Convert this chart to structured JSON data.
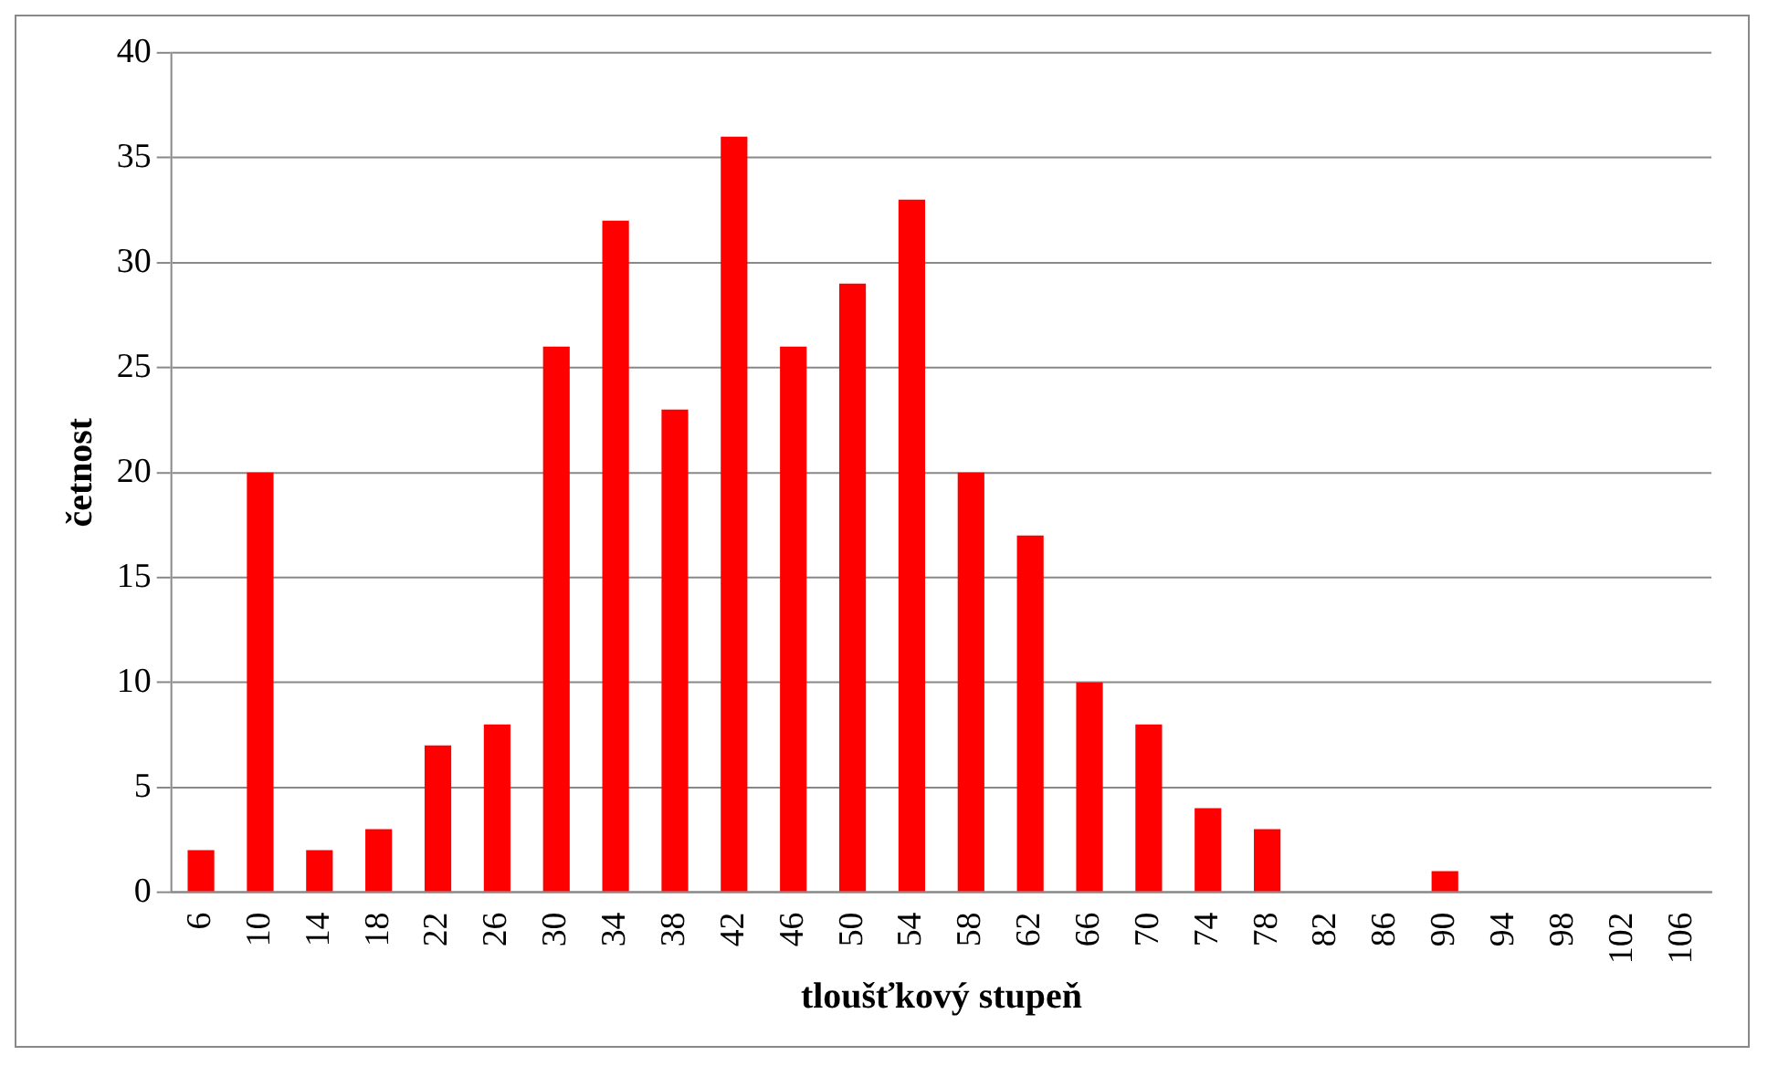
{
  "chart_data": {
    "type": "bar",
    "xlabel": "tloušťkový stupeň",
    "ylabel": "četnost",
    "categories": [
      "6",
      "10",
      "14",
      "18",
      "22",
      "26",
      "30",
      "34",
      "38",
      "42",
      "46",
      "50",
      "54",
      "58",
      "62",
      "66",
      "70",
      "74",
      "78",
      "82",
      "86",
      "90",
      "94",
      "98",
      "102",
      "106"
    ],
    "values": [
      2,
      20,
      2,
      3,
      7,
      8,
      26,
      32,
      23,
      36,
      26,
      29,
      33,
      20,
      17,
      10,
      8,
      4,
      3,
      0,
      0,
      1,
      0,
      0,
      0,
      0
    ],
    "color": "#ff0000",
    "ylim": [
      0,
      40
    ],
    "yticks": [
      0,
      5,
      10,
      15,
      20,
      25,
      30,
      35,
      40
    ],
    "grid": "y",
    "legend": false
  }
}
